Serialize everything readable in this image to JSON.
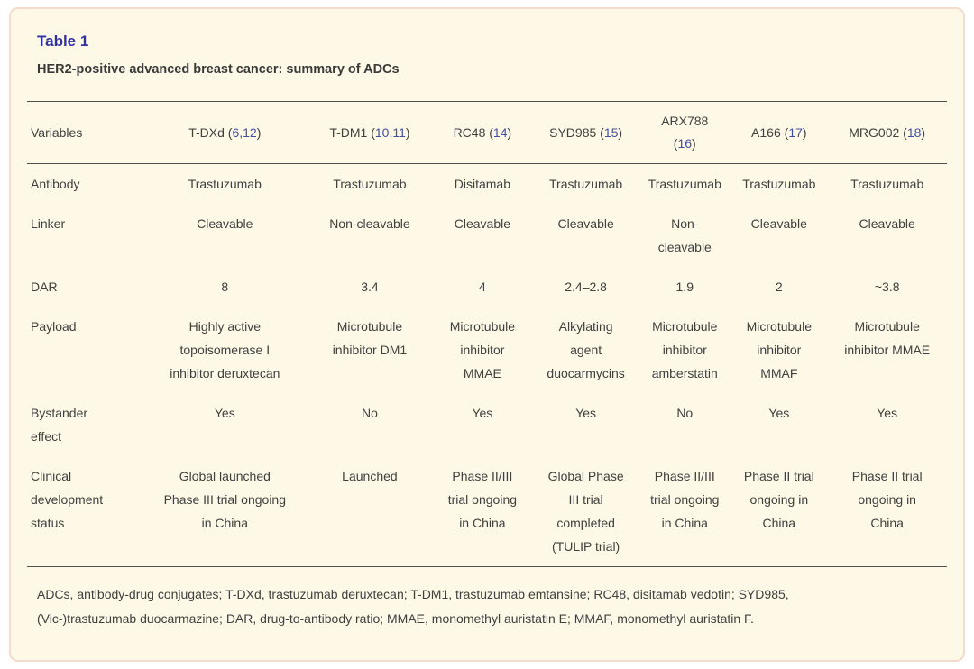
{
  "card": {
    "title": "Table 1",
    "subtitle": "HER2-positive advanced breast cancer: summary of ADCs",
    "footnote": "ADCs, antibody-drug conjugates; T-DXd, trastuzumab deruxtecan; T-DM1, trastuzumab emtansine; RC48, disitamab vedotin; SYD985,\n(Vic-)trastuzumab duocarmazine; DAR, drug-to-antibody ratio; MMAE, monomethyl auristatin E; MMAF, monomethyl auristatin F."
  },
  "table": {
    "header_label": "Variables",
    "columns": [
      {
        "name": "T-DXd",
        "refs": [
          "6",
          "12"
        ],
        "refs_on_new_line": false
      },
      {
        "name": "T-DM1",
        "refs": [
          "10",
          "11"
        ],
        "refs_on_new_line": false
      },
      {
        "name": "RC48",
        "refs": [
          "14"
        ],
        "refs_on_new_line": false
      },
      {
        "name": "SYD985",
        "refs": [
          "15"
        ],
        "refs_on_new_line": false
      },
      {
        "name": "ARX788",
        "refs": [
          "16"
        ],
        "refs_on_new_line": true
      },
      {
        "name": "A166",
        "refs": [
          "17"
        ],
        "refs_on_new_line": false
      },
      {
        "name": "MRG002",
        "refs": [
          "18"
        ],
        "refs_on_new_line": false
      }
    ],
    "rows": [
      {
        "label": "Antibody",
        "values": [
          "Trastuzumab",
          "Trastuzumab",
          "Disitamab",
          "Trastuzumab",
          "Trastuzumab",
          "Trastuzumab",
          "Trastuzumab"
        ]
      },
      {
        "label": "Linker",
        "values": [
          "Cleavable",
          "Non-cleavable",
          "Cleavable",
          "Cleavable",
          "Non-\ncleavable",
          "Cleavable",
          "Cleavable"
        ]
      },
      {
        "label": "DAR",
        "values": [
          "8",
          "3.4",
          "4",
          "2.4–2.8",
          "1.9",
          "2",
          "~3.8"
        ]
      },
      {
        "label": "Payload",
        "values": [
          "Highly active\ntopoisomerase I\ninhibitor deruxtecan",
          "Microtubule\ninhibitor DM1",
          "Microtubule\ninhibitor\nMMAE",
          "Alkylating\nagent\nduocarmycins",
          "Microtubule\ninhibitor\namberstatin",
          "Microtubule\ninhibitor\nMMAF",
          "Microtubule\ninhibitor MMAE"
        ]
      },
      {
        "label": "Bystander\neffect",
        "values": [
          "Yes",
          "No",
          "Yes",
          "Yes",
          "No",
          "Yes",
          "Yes"
        ]
      },
      {
        "label": "Clinical\ndevelopment\nstatus",
        "values": [
          "Global launched\nPhase III trial ongoing\nin China",
          "Launched",
          "Phase II/III\ntrial ongoing\nin China",
          "Global Phase\nIII trial\ncompleted\n(TULIP trial)",
          "Phase II/III\ntrial ongoing\nin China",
          "Phase II trial\nongoing in\nChina",
          "Phase II trial\nongoing in\nChina"
        ]
      }
    ]
  },
  "colors": {
    "page_background": "#ffffff",
    "card_background": "#fdf9e6",
    "card_border": "#f5dbcc",
    "title_text": "#32329e",
    "citation_link": "#3f4fa5",
    "body_text": "#404040",
    "rule": "#4f4f4f"
  }
}
